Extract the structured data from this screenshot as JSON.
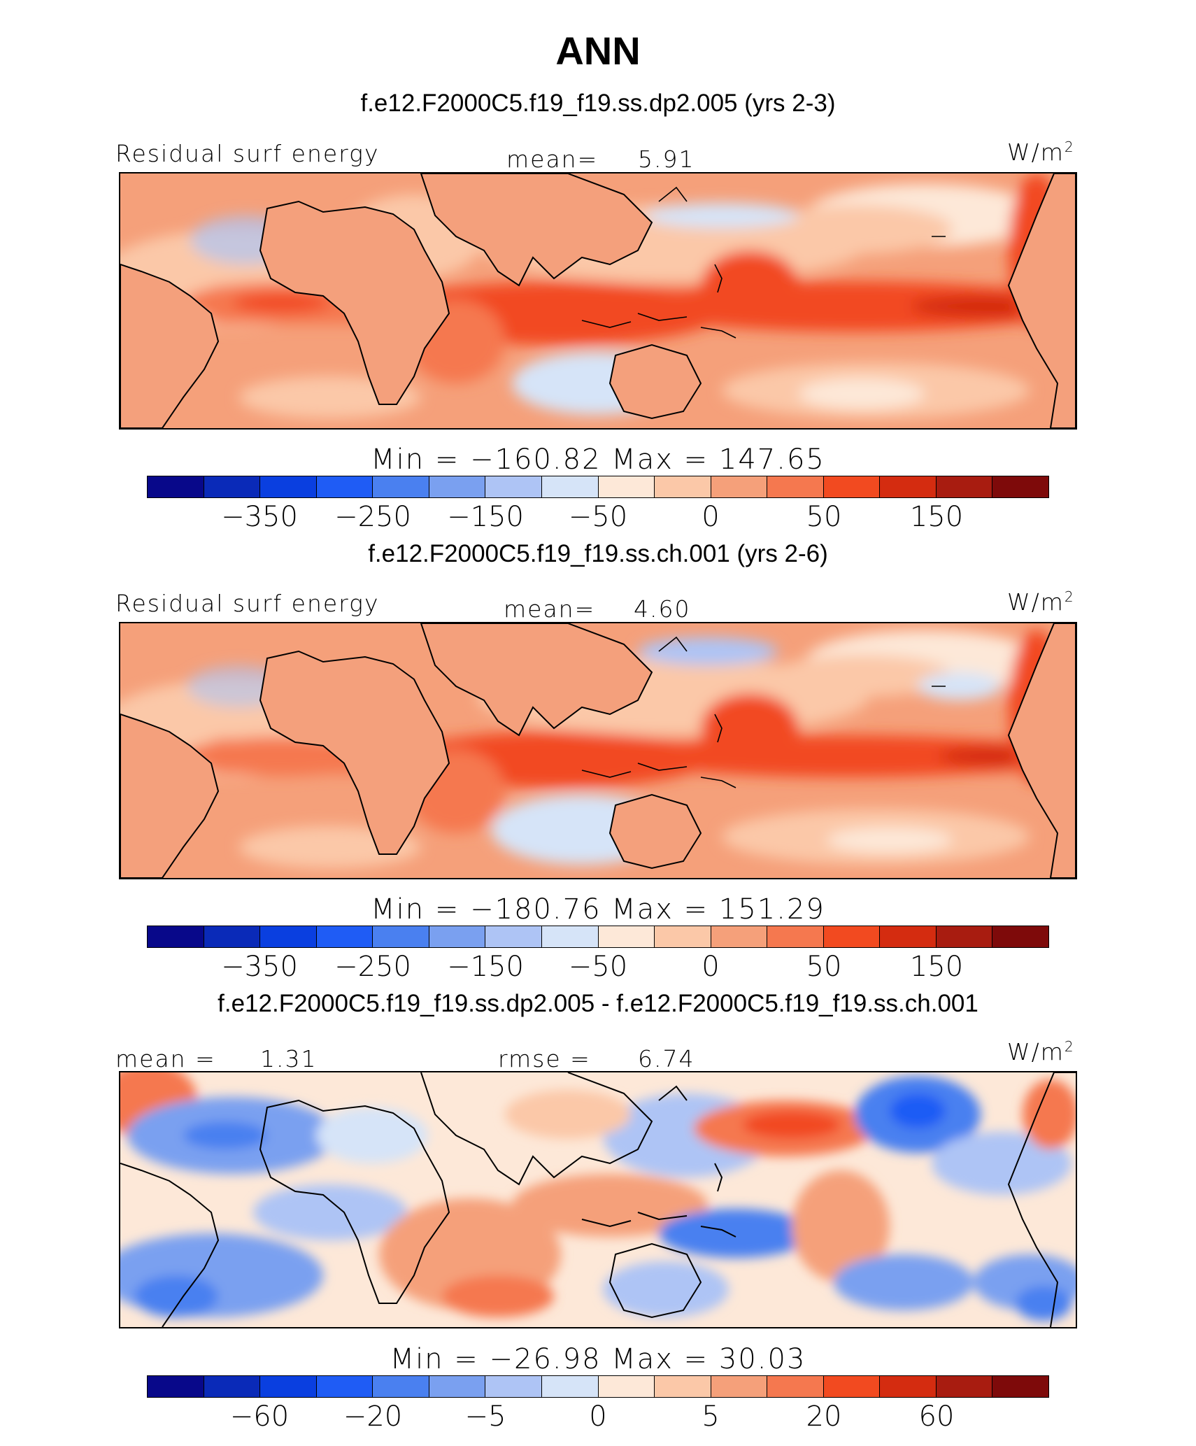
{
  "title": "ANN",
  "units_label": "W/m",
  "units_sup": "2",
  "colors": {
    "scale": [
      "#08088a",
      "#0a2ab8",
      "#0a3fe0",
      "#1f5cf5",
      "#4a80f0",
      "#7aa0f0",
      "#aec4f5",
      "#d6e4f8",
      "#fde8d8",
      "#fbc8a8",
      "#f5a07a",
      "#f5784f",
      "#f24a20",
      "#d42c10",
      "#a81c10",
      "#7e0a0a"
    ],
    "land": "#f4a07c"
  },
  "panels": [
    {
      "case_title": "f.e12.F2000C5.f19_f19.ss.dp2.005 (yrs 2-3)",
      "left_label": "Residual surf energy",
      "center_label": "mean=",
      "center_value": "5.91",
      "min_max": "Min  =  −160.82  Max  =  147.65",
      "ticks": [
        "−350",
        "−250",
        "−150",
        "−50",
        "0",
        "50",
        "150"
      ],
      "mean_value": 5.91,
      "min_value": -160.82,
      "max_value": 147.65
    },
    {
      "case_title": "f.e12.F2000C5.f19_f19.ss.ch.001 (yrs 2-6)",
      "left_label": "Residual surf energy",
      "center_label": "mean=",
      "center_value": "4.60",
      "min_max": "Min  =  −180.76  Max  =  151.29",
      "ticks": [
        "−350",
        "−250",
        "−150",
        "−50",
        "0",
        "50",
        "150"
      ],
      "mean_value": 4.6,
      "min_value": -180.76,
      "max_value": 151.29
    },
    {
      "case_title": "f.e12.F2000C5.f19_f19.ss.dp2.005 - f.e12.F2000C5.f19_f19.ss.ch.001",
      "left_label": "mean =",
      "left_value": "1.31",
      "center_label": "rmse =",
      "center_value": "6.74",
      "min_max": "Min  =  −26.98  Max  =   30.03",
      "ticks": [
        "−60",
        "−20",
        "−5",
        "0",
        "5",
        "20",
        "60"
      ],
      "mean_value": 1.31,
      "rmse_value": 6.74,
      "min_value": -26.98,
      "max_value": 30.03
    }
  ]
}
